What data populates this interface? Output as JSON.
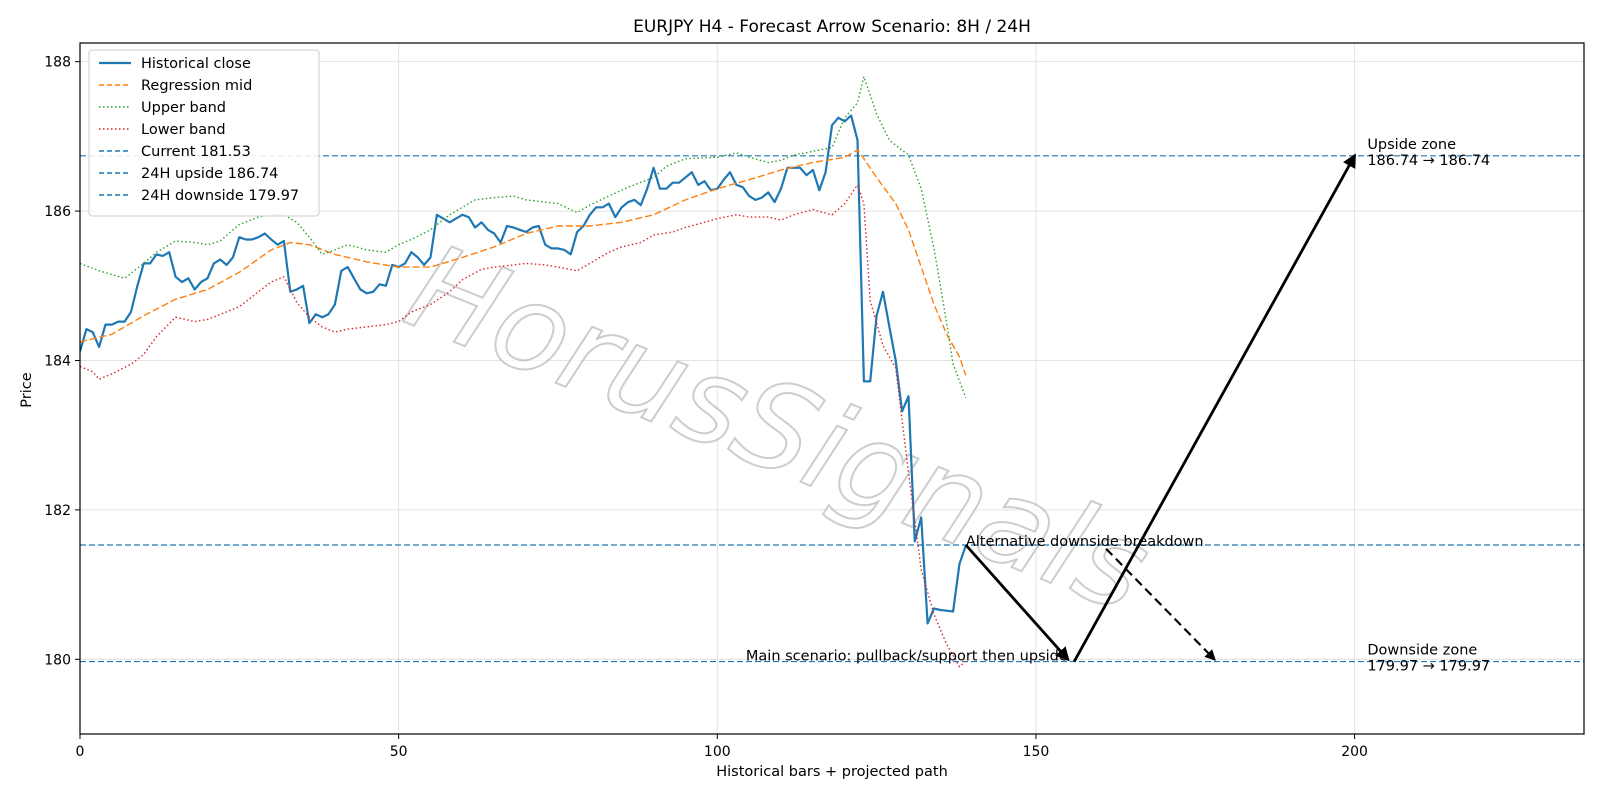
{
  "watermark": "HorusSignals",
  "chart_data": {
    "type": "line",
    "title": "EURJPY H4 - Forecast Arrow Scenario: 8H / 24H",
    "xlabel": "Historical bars + projected path",
    "ylabel": "Price",
    "xlim": [
      0,
      236
    ],
    "ylim": [
      179.0,
      188.25
    ],
    "x_ticks": [
      0,
      50,
      100,
      150,
      200
    ],
    "y_ticks": [
      180,
      182,
      184,
      186,
      188
    ],
    "grid": true,
    "legend_position": "upper-left",
    "colors": {
      "historical": "#1f77b4",
      "regression": "#ff7f0e",
      "upper": "#2ca02c",
      "lower": "#d62728",
      "hline": "#1f77b4",
      "arrow": "#000000"
    },
    "series": [
      {
        "name": "Historical close",
        "style": "solid",
        "color": "#1f77b4",
        "x": [
          0,
          1,
          2,
          3,
          4,
          5,
          6,
          7,
          8,
          9,
          10,
          11,
          12,
          13,
          14,
          15,
          16,
          17,
          18,
          19,
          20,
          21,
          22,
          23,
          24,
          25,
          26,
          27,
          28,
          29,
          30,
          31,
          32,
          33,
          34,
          35,
          36,
          37,
          38,
          39,
          40,
          41,
          42,
          43,
          44,
          45,
          46,
          47,
          48,
          49,
          50,
          51,
          52,
          53,
          54,
          55,
          56,
          57,
          58,
          59,
          60,
          61,
          62,
          63,
          64,
          65,
          66,
          67,
          68,
          69,
          70,
          71,
          72,
          73,
          74,
          75,
          76,
          77,
          78,
          79,
          80,
          81,
          82,
          83,
          84,
          85,
          86,
          87,
          88,
          89,
          90,
          91,
          92,
          93,
          94,
          95,
          96,
          97,
          98,
          99,
          100,
          101,
          102,
          103,
          104,
          105,
          106,
          107,
          108,
          109,
          110,
          111,
          112,
          113,
          114,
          115,
          116,
          117,
          118,
          119,
          120,
          121,
          122,
          123,
          124,
          125,
          126,
          127,
          128,
          129,
          130,
          131,
          132,
          133,
          134,
          135,
          136,
          137,
          138,
          139
        ],
        "values": [
          184.12,
          184.42,
          184.38,
          184.18,
          184.48,
          184.48,
          184.52,
          184.52,
          184.65,
          185.0,
          185.3,
          185.3,
          185.42,
          185.4,
          185.45,
          185.12,
          185.05,
          185.1,
          184.95,
          185.05,
          185.1,
          185.3,
          185.35,
          185.28,
          185.38,
          185.65,
          185.62,
          185.62,
          185.65,
          185.7,
          185.62,
          185.55,
          185.6,
          184.92,
          184.95,
          185.0,
          184.5,
          184.62,
          184.58,
          184.62,
          184.75,
          185.2,
          185.25,
          185.1,
          184.95,
          184.9,
          184.92,
          185.02,
          185.0,
          185.28,
          185.25,
          185.3,
          185.45,
          185.38,
          185.28,
          185.38,
          185.95,
          185.9,
          185.85,
          185.9,
          185.95,
          185.92,
          185.78,
          185.85,
          185.75,
          185.7,
          185.58,
          185.8,
          185.78,
          185.75,
          185.72,
          185.78,
          185.8,
          185.55,
          185.5,
          185.5,
          185.48,
          185.42,
          185.72,
          185.8,
          185.95,
          186.05,
          186.05,
          186.1,
          185.92,
          186.05,
          186.12,
          186.15,
          186.08,
          186.3,
          186.58,
          186.3,
          186.3,
          186.38,
          186.38,
          186.45,
          186.52,
          186.35,
          186.4,
          186.28,
          186.3,
          186.42,
          186.52,
          186.35,
          186.32,
          186.2,
          186.15,
          186.18,
          186.25,
          186.12,
          186.3,
          186.58,
          186.58,
          186.58,
          186.48,
          186.55,
          186.28,
          186.52,
          187.15,
          187.25,
          187.2,
          187.28,
          186.95,
          183.72,
          183.72,
          184.6,
          184.92,
          184.45,
          184.0,
          183.32,
          183.52,
          181.58,
          181.9,
          180.48,
          180.68,
          180.66,
          180.65,
          180.64,
          181.28,
          181.52
        ]
      },
      {
        "name": "Regression mid",
        "style": "dashed",
        "color": "#ff7f0e",
        "x": [
          0,
          5,
          10,
          15,
          20,
          25,
          30,
          33,
          36,
          40,
          45,
          50,
          55,
          60,
          65,
          70,
          75,
          80,
          85,
          90,
          95,
          100,
          105,
          110,
          115,
          120,
          122,
          123,
          125,
          128,
          130,
          132,
          134,
          136,
          138,
          139
        ],
        "values": [
          184.25,
          184.35,
          184.6,
          184.82,
          184.95,
          185.18,
          185.48,
          185.58,
          185.55,
          185.42,
          185.32,
          185.25,
          185.25,
          185.38,
          185.52,
          185.7,
          185.8,
          185.8,
          185.85,
          185.95,
          186.15,
          186.3,
          186.42,
          186.55,
          186.65,
          186.72,
          186.82,
          186.7,
          186.45,
          186.1,
          185.75,
          185.25,
          184.75,
          184.35,
          184.05,
          183.8
        ]
      },
      {
        "name": "Upper band",
        "style": "dotted",
        "color": "#2ca02c",
        "x": [
          0,
          3,
          5,
          7,
          10,
          12,
          15,
          18,
          20,
          22,
          25,
          28,
          30,
          32,
          34,
          36,
          38,
          40,
          42,
          45,
          48,
          50,
          52,
          55,
          58,
          60,
          62,
          65,
          68,
          70,
          75,
          78,
          80,
          83,
          86,
          90,
          92,
          95,
          100,
          103,
          105,
          108,
          110,
          112,
          115,
          118,
          120,
          122,
          123,
          125,
          127,
          128,
          130,
          132,
          134,
          136,
          137,
          139
        ],
        "values": [
          185.3,
          185.2,
          185.15,
          185.1,
          185.3,
          185.45,
          185.6,
          185.58,
          185.55,
          185.6,
          185.82,
          185.92,
          185.95,
          185.95,
          185.85,
          185.65,
          185.42,
          185.48,
          185.55,
          185.48,
          185.45,
          185.55,
          185.62,
          185.75,
          185.95,
          186.05,
          186.15,
          186.18,
          186.2,
          186.15,
          186.1,
          185.98,
          186.08,
          186.2,
          186.32,
          186.45,
          186.6,
          186.7,
          186.72,
          186.78,
          186.72,
          186.65,
          186.68,
          186.75,
          186.8,
          186.85,
          187.25,
          187.45,
          187.8,
          187.3,
          186.95,
          186.88,
          186.75,
          186.3,
          185.5,
          184.5,
          183.95,
          183.5
        ]
      },
      {
        "name": "Lower band",
        "style": "dotted",
        "color": "#d62728",
        "x": [
          0,
          2,
          3,
          5,
          8,
          10,
          12,
          15,
          18,
          20,
          23,
          25,
          28,
          30,
          32,
          34,
          36,
          38,
          40,
          42,
          45,
          48,
          50,
          52,
          55,
          58,
          60,
          63,
          65,
          68,
          70,
          73,
          75,
          78,
          80,
          83,
          85,
          88,
          90,
          93,
          95,
          98,
          100,
          103,
          105,
          108,
          110,
          112,
          115,
          118,
          120,
          122,
          123,
          124,
          126,
          128,
          130,
          132,
          134,
          136,
          138,
          139
        ],
        "values": [
          183.92,
          183.85,
          183.75,
          183.82,
          183.95,
          184.08,
          184.32,
          184.58,
          184.52,
          184.55,
          184.65,
          184.72,
          184.92,
          185.05,
          185.12,
          184.78,
          184.58,
          184.45,
          184.38,
          184.42,
          184.45,
          184.48,
          184.52,
          184.65,
          184.75,
          184.92,
          185.08,
          185.22,
          185.25,
          185.28,
          185.3,
          185.28,
          185.25,
          185.2,
          185.3,
          185.45,
          185.52,
          185.58,
          185.68,
          185.72,
          185.78,
          185.85,
          185.9,
          185.95,
          185.92,
          185.92,
          185.88,
          185.95,
          186.02,
          185.95,
          186.1,
          186.35,
          186.1,
          184.8,
          184.2,
          183.9,
          182.5,
          181.2,
          180.6,
          180.2,
          179.9,
          179.98
        ]
      }
    ],
    "hlines": [
      {
        "name": "Current 181.53",
        "value": 181.53
      },
      {
        "name": "24H upside 186.74",
        "value": 186.74
      },
      {
        "name": "24H downside 179.97",
        "value": 179.97
      }
    ],
    "arrows": [
      {
        "label": "main-down",
        "from": [
          139,
          181.53
        ],
        "to": [
          155,
          180.0
        ],
        "style": "solid"
      },
      {
        "label": "main-up",
        "from": [
          156,
          179.97
        ],
        "to": [
          200,
          186.74
        ],
        "style": "solid"
      },
      {
        "label": "alt-down",
        "from": [
          161,
          181.48
        ],
        "to": [
          178,
          180.0
        ],
        "style": "dashed"
      }
    ],
    "annotations": [
      {
        "id": "alt",
        "text": "Alternative downside breakdown",
        "x": 139,
        "y": 181.53,
        "anchor": "start"
      },
      {
        "id": "main",
        "text": "Main scenario: pullback/support then upside",
        "x": 155,
        "y": 180.0,
        "anchor": "end"
      },
      {
        "id": "upzone1",
        "text": "Upside zone",
        "x": 202,
        "y": 186.74,
        "anchor": "start",
        "dy": -8
      },
      {
        "id": "upzone2",
        "text": "186.74 → 186.74",
        "x": 202,
        "y": 186.74,
        "anchor": "start",
        "dy": 8
      },
      {
        "id": "downzone1",
        "text": "Downside zone",
        "x": 202,
        "y": 179.97,
        "anchor": "start",
        "dy": -8
      },
      {
        "id": "downzone2",
        "text": "179.97 → 179.97",
        "x": 202,
        "y": 179.97,
        "anchor": "start",
        "dy": 8
      }
    ]
  }
}
